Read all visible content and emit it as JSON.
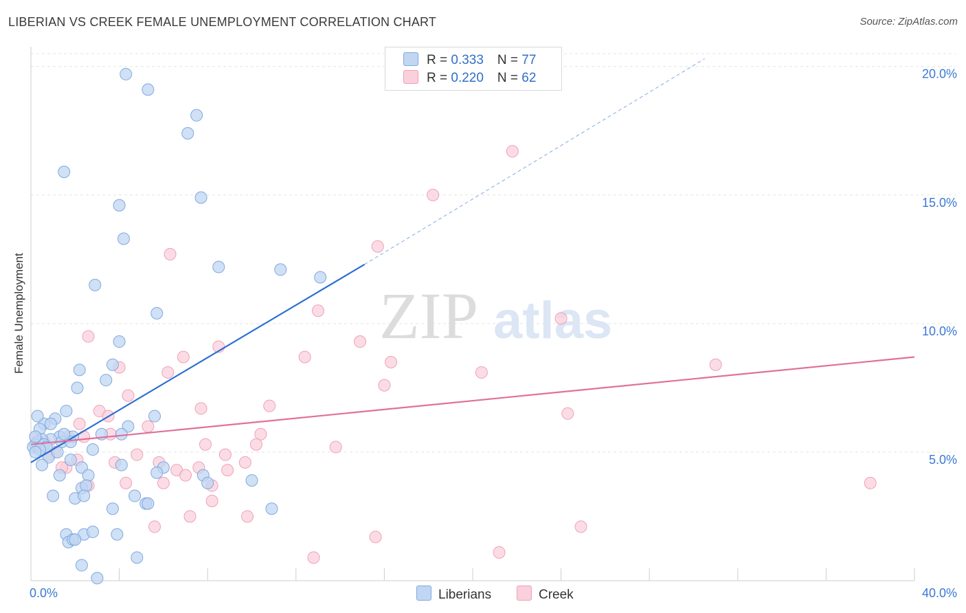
{
  "title": "LIBERIAN VS CREEK FEMALE UNEMPLOYMENT CORRELATION CHART",
  "source": "Source: ZipAtlas.com",
  "watermark": {
    "zip": "ZIP",
    "atlas": "atlas"
  },
  "legend": {
    "rows": [
      {
        "r_label": "R = ",
        "r_value": "0.333",
        "n_label": "N = ",
        "n_value": "77"
      },
      {
        "r_label": "R = ",
        "r_value": "0.220",
        "n_label": "N = ",
        "n_value": "62"
      }
    ]
  },
  "series_labels": {
    "liberians": "Liberians",
    "creek": "Creek"
  },
  "colors": {
    "liberians_fill": "#c0d6f2",
    "liberians_stroke": "#7ea9e0",
    "liberians_line": "#2a6fd0",
    "creek_fill": "#f9d0dc",
    "creek_stroke": "#efa0b8",
    "creek_line": "#e0709a",
    "axis_text": "#3a78d4",
    "grid": "#e4e4e4"
  },
  "chart_data": {
    "type": "scatter",
    "title": "LIBERIAN VS CREEK FEMALE UNEMPLOYMENT CORRELATION CHART",
    "xlabel": "",
    "ylabel": "Female Unemployment",
    "xlim": [
      0,
      40
    ],
    "ylim": [
      0,
      20.5
    ],
    "x_tick_labels": [
      "0.0%",
      "40.0%"
    ],
    "y_ticks": [
      5,
      10,
      15,
      20
    ],
    "y_tick_labels": [
      "5.0%",
      "10.0%",
      "15.0%",
      "20.0%"
    ],
    "grid": true,
    "legend_position": "top-center",
    "series": [
      {
        "name": "Liberians",
        "R": 0.333,
        "N": 77,
        "trend": {
          "x0": 0,
          "y0": 4.6,
          "x1": 15.1,
          "y1": 12.3,
          "dashed_to_x": 30.5,
          "dashed_to_y": 20.3
        },
        "points": [
          [
            4.3,
            19.7
          ],
          [
            5.3,
            19.1
          ],
          [
            7.5,
            18.1
          ],
          [
            7.1,
            17.4
          ],
          [
            1.5,
            15.9
          ],
          [
            7.7,
            14.9
          ],
          [
            4.0,
            14.6
          ],
          [
            4.2,
            13.3
          ],
          [
            8.5,
            12.2
          ],
          [
            11.3,
            12.1
          ],
          [
            13.1,
            11.8
          ],
          [
            2.9,
            11.5
          ],
          [
            5.7,
            10.4
          ],
          [
            4.0,
            9.3
          ],
          [
            3.7,
            8.4
          ],
          [
            2.2,
            8.2
          ],
          [
            3.4,
            7.8
          ],
          [
            2.1,
            7.5
          ],
          [
            1.6,
            6.6
          ],
          [
            1.1,
            6.3
          ],
          [
            0.6,
            6.1
          ],
          [
            0.4,
            5.9
          ],
          [
            0.3,
            6.4
          ],
          [
            5.6,
            6.4
          ],
          [
            4.4,
            6.0
          ],
          [
            1.9,
            5.6
          ],
          [
            3.2,
            5.7
          ],
          [
            4.1,
            5.7
          ],
          [
            1.3,
            5.6
          ],
          [
            0.9,
            5.5
          ],
          [
            0.5,
            5.5
          ],
          [
            0.3,
            5.4
          ],
          [
            0.2,
            5.3
          ],
          [
            0.1,
            5.2
          ],
          [
            0.6,
            5.3
          ],
          [
            1.4,
            5.4
          ],
          [
            1.8,
            5.4
          ],
          [
            2.8,
            5.1
          ],
          [
            0.8,
            4.8
          ],
          [
            1.8,
            4.7
          ],
          [
            0.5,
            4.5
          ],
          [
            2.3,
            4.4
          ],
          [
            4.1,
            4.5
          ],
          [
            6.0,
            4.4
          ],
          [
            5.7,
            4.2
          ],
          [
            1.3,
            4.1
          ],
          [
            2.6,
            4.1
          ],
          [
            7.8,
            4.1
          ],
          [
            8.0,
            3.8
          ],
          [
            10.0,
            3.9
          ],
          [
            2.3,
            3.6
          ],
          [
            2.5,
            3.7
          ],
          [
            1.0,
            3.3
          ],
          [
            2.0,
            3.2
          ],
          [
            2.4,
            3.3
          ],
          [
            4.7,
            3.3
          ],
          [
            5.2,
            3.0
          ],
          [
            5.3,
            3.0
          ],
          [
            3.7,
            2.8
          ],
          [
            10.9,
            2.8
          ],
          [
            1.6,
            1.8
          ],
          [
            2.4,
            1.8
          ],
          [
            2.8,
            1.9
          ],
          [
            3.9,
            1.8
          ],
          [
            1.7,
            1.5
          ],
          [
            1.9,
            1.6
          ],
          [
            2.0,
            1.6
          ],
          [
            4.8,
            0.9
          ],
          [
            2.3,
            0.6
          ],
          [
            3.0,
            0.1
          ],
          [
            0.2,
            5.6
          ],
          [
            0.7,
            5.2
          ],
          [
            1.2,
            5.0
          ],
          [
            0.4,
            5.1
          ],
          [
            1.5,
            5.7
          ],
          [
            0.9,
            6.1
          ],
          [
            0.2,
            5.0
          ]
        ]
      },
      {
        "name": "Creek",
        "R": 0.22,
        "N": 62,
        "trend": {
          "x0": 0,
          "y0": 5.3,
          "x1": 40,
          "y1": 8.7
        },
        "points": [
          [
            21.8,
            16.7
          ],
          [
            18.2,
            15.0
          ],
          [
            15.7,
            13.0
          ],
          [
            6.3,
            12.7
          ],
          [
            13.0,
            10.5
          ],
          [
            24.0,
            10.2
          ],
          [
            2.6,
            9.5
          ],
          [
            14.9,
            9.3
          ],
          [
            8.5,
            9.1
          ],
          [
            12.4,
            8.7
          ],
          [
            6.9,
            8.7
          ],
          [
            16.3,
            8.5
          ],
          [
            31.0,
            8.4
          ],
          [
            4.0,
            8.3
          ],
          [
            6.2,
            8.1
          ],
          [
            20.4,
            8.1
          ],
          [
            16.0,
            7.6
          ],
          [
            4.4,
            7.2
          ],
          [
            10.8,
            6.8
          ],
          [
            7.7,
            6.7
          ],
          [
            3.1,
            6.6
          ],
          [
            3.5,
            6.4
          ],
          [
            24.3,
            6.5
          ],
          [
            2.2,
            6.1
          ],
          [
            5.3,
            6.0
          ],
          [
            3.6,
            5.7
          ],
          [
            1.7,
            5.6
          ],
          [
            2.4,
            5.6
          ],
          [
            10.4,
            5.7
          ],
          [
            10.2,
            5.3
          ],
          [
            7.9,
            5.3
          ],
          [
            13.8,
            5.2
          ],
          [
            0.3,
            5.2
          ],
          [
            1.1,
            5.0
          ],
          [
            0.8,
            4.9
          ],
          [
            4.8,
            4.9
          ],
          [
            8.8,
            4.9
          ],
          [
            9.7,
            4.6
          ],
          [
            2.1,
            4.7
          ],
          [
            3.8,
            4.6
          ],
          [
            5.8,
            4.6
          ],
          [
            7.6,
            4.4
          ],
          [
            6.6,
            4.3
          ],
          [
            8.9,
            4.3
          ],
          [
            1.6,
            4.4
          ],
          [
            7.0,
            4.1
          ],
          [
            4.3,
            3.8
          ],
          [
            6.0,
            3.8
          ],
          [
            2.6,
            3.7
          ],
          [
            8.2,
            3.7
          ],
          [
            38.0,
            3.8
          ],
          [
            8.2,
            3.1
          ],
          [
            7.2,
            2.5
          ],
          [
            9.8,
            2.5
          ],
          [
            5.6,
            2.1
          ],
          [
            24.9,
            2.1
          ],
          [
            15.6,
            1.7
          ],
          [
            21.2,
            1.1
          ],
          [
            12.8,
            0.9
          ],
          [
            1.4,
            4.4
          ],
          [
            0.6,
            5.4
          ],
          [
            0.2,
            5.6
          ]
        ]
      }
    ]
  }
}
